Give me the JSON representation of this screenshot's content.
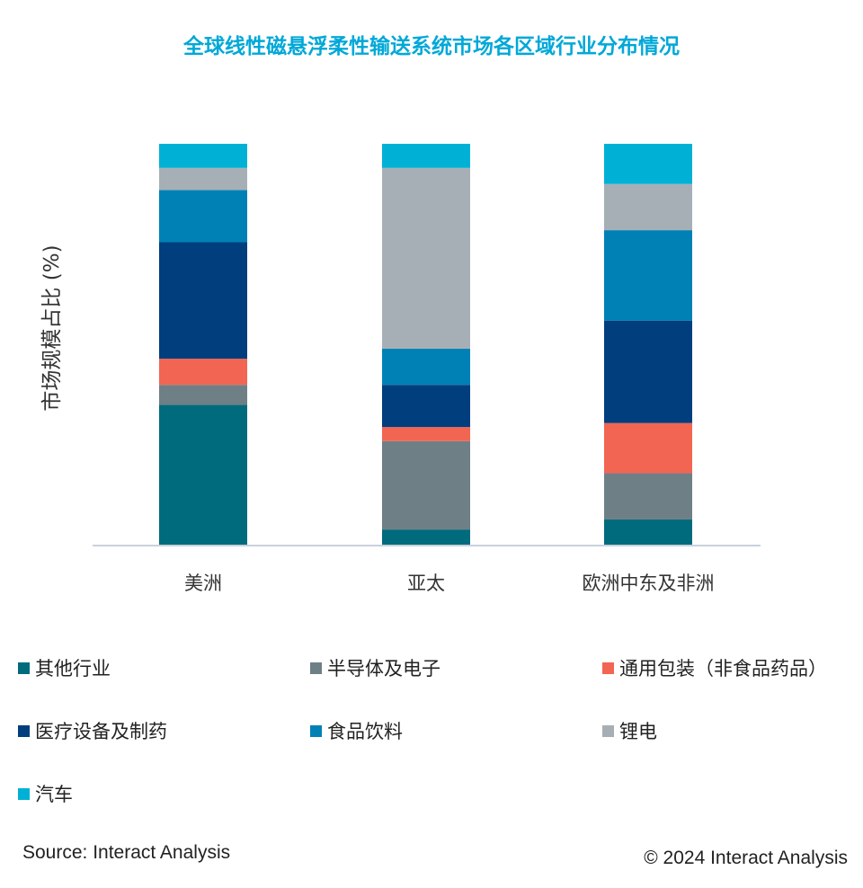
{
  "chart_data": {
    "type": "bar",
    "stacked": true,
    "title": "全球线性磁悬浮柔性输送系统市场各区域行业分布情况",
    "ylabel": "市场规模占比 (%)",
    "xlabel": "",
    "ylim": [
      0,
      100
    ],
    "categories": [
      "美洲",
      "亚太",
      "欧洲中东及非洲"
    ],
    "series": [
      {
        "name": "其他行业",
        "color": "#006b7d",
        "values": [
          35,
          4,
          6.5
        ]
      },
      {
        "name": "半导体及电子",
        "color": "#6f7f86",
        "values": [
          5,
          22,
          11.5
        ]
      },
      {
        "name": "通用包装（非食品药品）",
        "color": "#f26552",
        "values": [
          6.5,
          3.5,
          12.5
        ]
      },
      {
        "name": "医疗设备及制药",
        "color": "#003e7e",
        "values": [
          29,
          10.5,
          25.5
        ]
      },
      {
        "name": "食品饮料",
        "color": "#0081b6",
        "values": [
          13,
          9,
          22.5
        ]
      },
      {
        "name": "锂电",
        "color": "#a7afb6",
        "values": [
          5.5,
          45,
          11.5
        ]
      },
      {
        "name": "汽车",
        "color": "#00b1d5",
        "values": [
          6,
          6,
          10
        ]
      }
    ]
  },
  "colors": {
    "title": "#00a8d8",
    "axis": "#c8d1dd"
  },
  "footer": {
    "source": "Source: Interact Analysis",
    "copyright": "© 2024 Interact Analysis"
  }
}
